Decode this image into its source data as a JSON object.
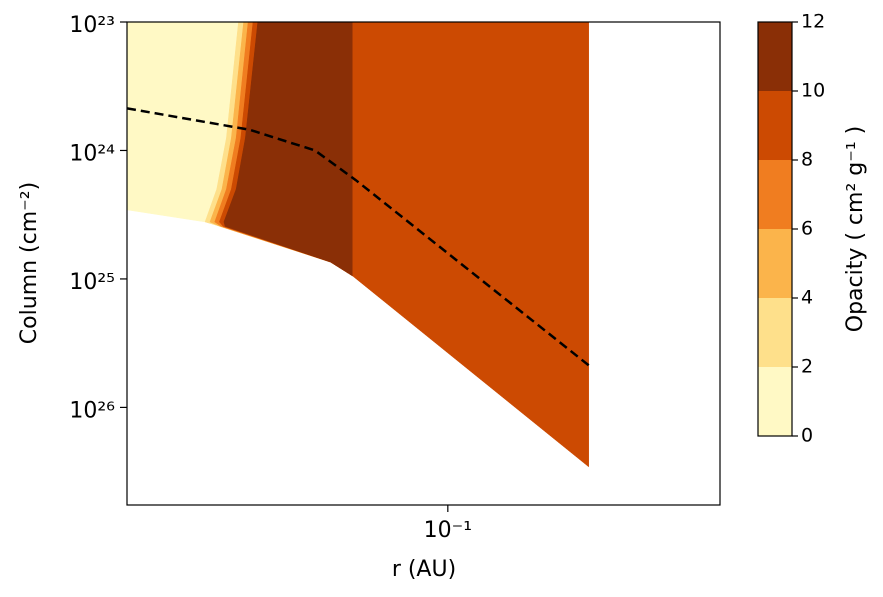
{
  "chart_data": {
    "type": "contourf",
    "xlabel": "r (AU)",
    "ylabel": "Column (cm⁻²)",
    "xscale": "log",
    "yscale": "log",
    "yinverted": true,
    "xlim": [
      0.015,
      0.5
    ],
    "ylim": [
      1e+23,
      5.75e+26
    ],
    "xticks": [
      {
        "value": 0.1,
        "label": "10⁻¹"
      }
    ],
    "yticks": [
      {
        "value": 1e+23,
        "label": "10²³"
      },
      {
        "value": 1e+24,
        "label": "10²⁴"
      },
      {
        "value": 1e+25,
        "label": "10²⁵"
      },
      {
        "value": 1e+26,
        "label": "10²⁶"
      }
    ],
    "regions": [
      {
        "range": [
          0,
          2
        ],
        "color": "#fff9c5",
        "r": [
          0.015,
          0.029,
          0.027,
          0.0255,
          0.0238,
          0.015
        ],
        "column": [
          1e+23,
          1e+23,
          8e+23,
          2e+24,
          3.6e+24,
          2.9e+24
        ]
      },
      {
        "range": [
          2,
          4
        ],
        "color": "#fee08b",
        "r": [
          0.029,
          0.057,
          0.057,
          0.05,
          0.026,
          0.0238,
          0.0255,
          0.027
        ],
        "column": [
          1e+23,
          1e+23,
          9.5e+24,
          7.4e+24,
          3.9e+24,
          3.6e+24,
          2e+24,
          8e+23
        ]
      },
      {
        "range": [
          4,
          6
        ],
        "color": "#fbb44b",
        "r": [
          0.0299,
          0.057,
          0.057,
          0.05,
          0.026,
          0.0245,
          0.0263,
          0.0278
        ],
        "column": [
          1e+23,
          1e+23,
          9.5e+24,
          7.4e+24,
          3.9e+24,
          3.6e+24,
          2e+24,
          8e+23
        ]
      },
      {
        "range": [
          6,
          8
        ],
        "color": "#f07d20",
        "r": [
          0.0307,
          0.057,
          0.057,
          0.05,
          0.0262,
          0.0252,
          0.027,
          0.0286
        ],
        "column": [
          1e+23,
          1e+23,
          9.5e+24,
          7.4e+24,
          3.9e+24,
          3.6e+24,
          2e+24,
          8e+23
        ]
      },
      {
        "range": [
          8,
          10
        ],
        "color": "#cc4a02",
        "r": [
          0.0316,
          0.057,
          0.057,
          0.05,
          0.0265,
          0.0259,
          0.0278,
          0.0294
        ],
        "column": [
          1e+23,
          1e+23,
          9.5e+24,
          7.4e+24,
          3.9e+24,
          3.6e+24,
          2e+24,
          8e+23
        ]
      },
      {
        "range": [
          10,
          12
        ],
        "color": "#8a2f06",
        "r": [
          0.0325,
          0.057,
          0.057,
          0.05,
          0.0268,
          0.0266,
          0.0286,
          0.0302
        ],
        "column": [
          1e+23,
          1e+23,
          9.5e+24,
          7.4e+24,
          3.9e+24,
          3.6e+24,
          2e+24,
          8e+23
        ]
      },
      {
        "range": [
          8,
          10
        ],
        "color": "#cc4a02",
        "r": [
          0.057,
          0.23,
          0.23,
          0.057
        ],
        "column": [
          1e+23,
          1e+23,
          2.9e+26,
          9.5e+24
        ]
      }
    ],
    "line": {
      "color": "#000000",
      "r": [
        0.015,
        0.031,
        0.0456,
        0.058,
        0.23
      ],
      "column": [
        4.7e+23,
        6.9e+23,
        1e+24,
        1.7e+24,
        4.7e+25
      ]
    },
    "colorbar": {
      "label": "Opacity ( cm² g⁻¹ )",
      "ticks": [
        0,
        2,
        4,
        6,
        8,
        10,
        12
      ],
      "colors": [
        "#fff9c5",
        "#fee08b",
        "#fbb44b",
        "#f07d20",
        "#cc4a02",
        "#8a2f06"
      ]
    }
  }
}
